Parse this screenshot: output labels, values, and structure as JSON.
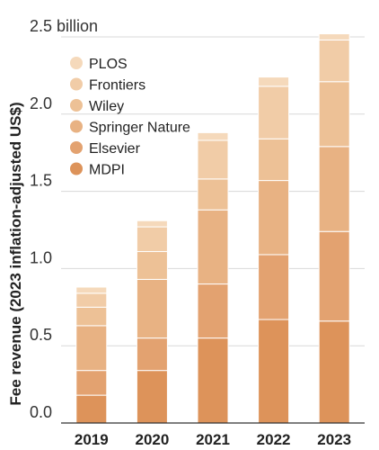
{
  "chart_data": {
    "type": "bar",
    "stacked": true,
    "categories": [
      "2019",
      "2020",
      "2021",
      "2022",
      "2023"
    ],
    "ylabel": "Fee revenue (2023 inflation-adjusted US$)",
    "ylim": [
      0,
      2.5
    ],
    "yticks": [
      {
        "value": 0.0,
        "label": "0.0"
      },
      {
        "value": 0.5,
        "label": "0.5"
      },
      {
        "value": 1.0,
        "label": "1.0"
      },
      {
        "value": 1.5,
        "label": "1.5"
      },
      {
        "value": 2.0,
        "label": "2.0"
      },
      {
        "value": 2.5,
        "label": "2.5 billion"
      }
    ],
    "grid": true,
    "legend_position": "top-left",
    "series": [
      {
        "name": "MDPI",
        "color": "#dd935a",
        "values": [
          0.18,
          0.34,
          0.55,
          0.67,
          0.66
        ]
      },
      {
        "name": "Elsevier",
        "color": "#e3a270",
        "values": [
          0.16,
          0.21,
          0.35,
          0.42,
          0.58
        ]
      },
      {
        "name": "Springer Nature",
        "color": "#e8b283",
        "values": [
          0.29,
          0.38,
          0.48,
          0.48,
          0.55
        ]
      },
      {
        "name": "Wiley",
        "color": "#edc196",
        "values": [
          0.12,
          0.18,
          0.2,
          0.27,
          0.42
        ]
      },
      {
        "name": "Frontiers",
        "color": "#f1cca7",
        "values": [
          0.09,
          0.16,
          0.25,
          0.34,
          0.27
        ]
      },
      {
        "name": "PLOS",
        "color": "#f5d9bb",
        "values": [
          0.04,
          0.04,
          0.05,
          0.06,
          0.04
        ]
      }
    ]
  }
}
